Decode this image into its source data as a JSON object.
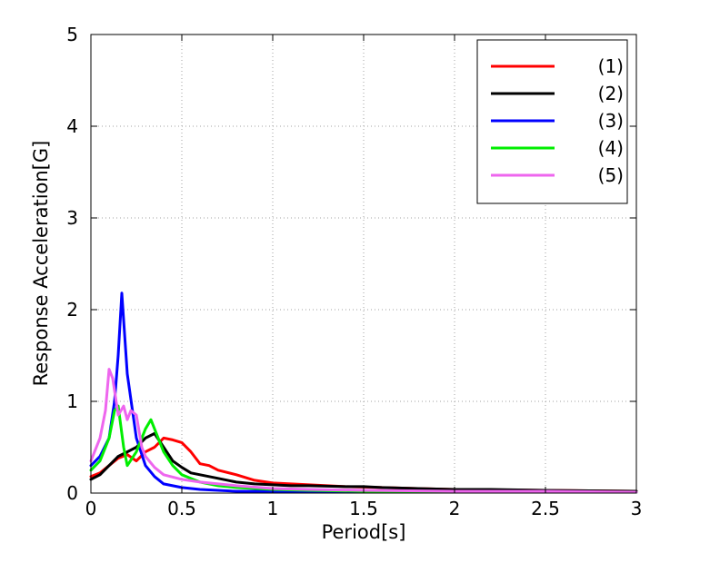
{
  "chart_data": {
    "type": "line",
    "title": "",
    "xlabel": "Period[s]",
    "ylabel": "Response Acceleration[G]",
    "xlim": [
      0,
      3
    ],
    "ylim": [
      0,
      5
    ],
    "xticks": [
      0,
      0.5,
      1,
      1.5,
      2,
      2.5,
      3
    ],
    "xtick_labels": [
      "0",
      "0.5",
      "1",
      "1.5",
      "2",
      "2.5",
      "3"
    ],
    "yticks": [
      0,
      1,
      2,
      3,
      4,
      5
    ],
    "ytick_labels": [
      "0",
      "1",
      "2",
      "3",
      "4",
      "5"
    ],
    "grid": true,
    "legend_position": "top-right",
    "series": [
      {
        "name": "(1)",
        "color": "#ff0000",
        "x": [
          0,
          0.05,
          0.1,
          0.15,
          0.2,
          0.25,
          0.3,
          0.35,
          0.4,
          0.45,
          0.5,
          0.55,
          0.6,
          0.65,
          0.7,
          0.8,
          0.9,
          1.0,
          1.1,
          1.2,
          1.4,
          1.6,
          1.8,
          2.0,
          2.5,
          3.0
        ],
        "y": [
          0.18,
          0.22,
          0.3,
          0.38,
          0.42,
          0.35,
          0.45,
          0.5,
          0.6,
          0.58,
          0.55,
          0.45,
          0.32,
          0.3,
          0.25,
          0.2,
          0.14,
          0.11,
          0.1,
          0.09,
          0.07,
          0.06,
          0.05,
          0.04,
          0.03,
          0.02
        ]
      },
      {
        "name": "(2)",
        "color": "#000000",
        "x": [
          0,
          0.05,
          0.1,
          0.15,
          0.2,
          0.25,
          0.3,
          0.35,
          0.4,
          0.45,
          0.5,
          0.55,
          0.6,
          0.65,
          0.7,
          0.8,
          0.9,
          1.0,
          1.1,
          1.2,
          1.4,
          1.5,
          1.6,
          1.8,
          2.0,
          2.2,
          2.5,
          3.0
        ],
        "y": [
          0.15,
          0.2,
          0.3,
          0.4,
          0.45,
          0.5,
          0.6,
          0.65,
          0.5,
          0.35,
          0.28,
          0.22,
          0.2,
          0.18,
          0.16,
          0.12,
          0.1,
          0.09,
          0.08,
          0.08,
          0.07,
          0.07,
          0.06,
          0.05,
          0.04,
          0.04,
          0.03,
          0.02
        ]
      },
      {
        "name": "(3)",
        "color": "#0000ff",
        "x": [
          0,
          0.05,
          0.1,
          0.13,
          0.15,
          0.17,
          0.2,
          0.25,
          0.3,
          0.35,
          0.4,
          0.5,
          0.6,
          0.7,
          0.8,
          1.0,
          1.2,
          1.5,
          2.0,
          2.5,
          3.0
        ],
        "y": [
          0.3,
          0.4,
          0.6,
          1.0,
          1.5,
          2.18,
          1.3,
          0.6,
          0.3,
          0.18,
          0.1,
          0.06,
          0.04,
          0.03,
          0.02,
          0.02,
          0.01,
          0.01,
          0.01,
          0.01,
          0.01
        ]
      },
      {
        "name": "(4)",
        "color": "#00ee00",
        "x": [
          0,
          0.05,
          0.1,
          0.13,
          0.15,
          0.18,
          0.2,
          0.25,
          0.3,
          0.33,
          0.35,
          0.4,
          0.45,
          0.5,
          0.6,
          0.7,
          0.8,
          1.0,
          1.2,
          1.5,
          2.0,
          2.5,
          3.0
        ],
        "y": [
          0.25,
          0.35,
          0.6,
          0.9,
          0.95,
          0.5,
          0.3,
          0.45,
          0.7,
          0.8,
          0.7,
          0.45,
          0.3,
          0.2,
          0.12,
          0.08,
          0.06,
          0.04,
          0.03,
          0.02,
          0.02,
          0.01,
          0.01
        ]
      },
      {
        "name": "(5)",
        "color": "#ee66ee",
        "x": [
          0,
          0.05,
          0.08,
          0.1,
          0.12,
          0.15,
          0.18,
          0.2,
          0.22,
          0.25,
          0.28,
          0.3,
          0.35,
          0.4,
          0.5,
          0.6,
          0.7,
          0.8,
          1.0,
          1.2,
          1.5,
          2.0,
          2.5,
          3.0
        ],
        "y": [
          0.35,
          0.6,
          0.9,
          1.35,
          1.25,
          0.85,
          0.95,
          0.8,
          0.9,
          0.85,
          0.5,
          0.4,
          0.28,
          0.2,
          0.15,
          0.12,
          0.1,
          0.08,
          0.05,
          0.04,
          0.03,
          0.02,
          0.02,
          0.01
        ]
      }
    ]
  }
}
